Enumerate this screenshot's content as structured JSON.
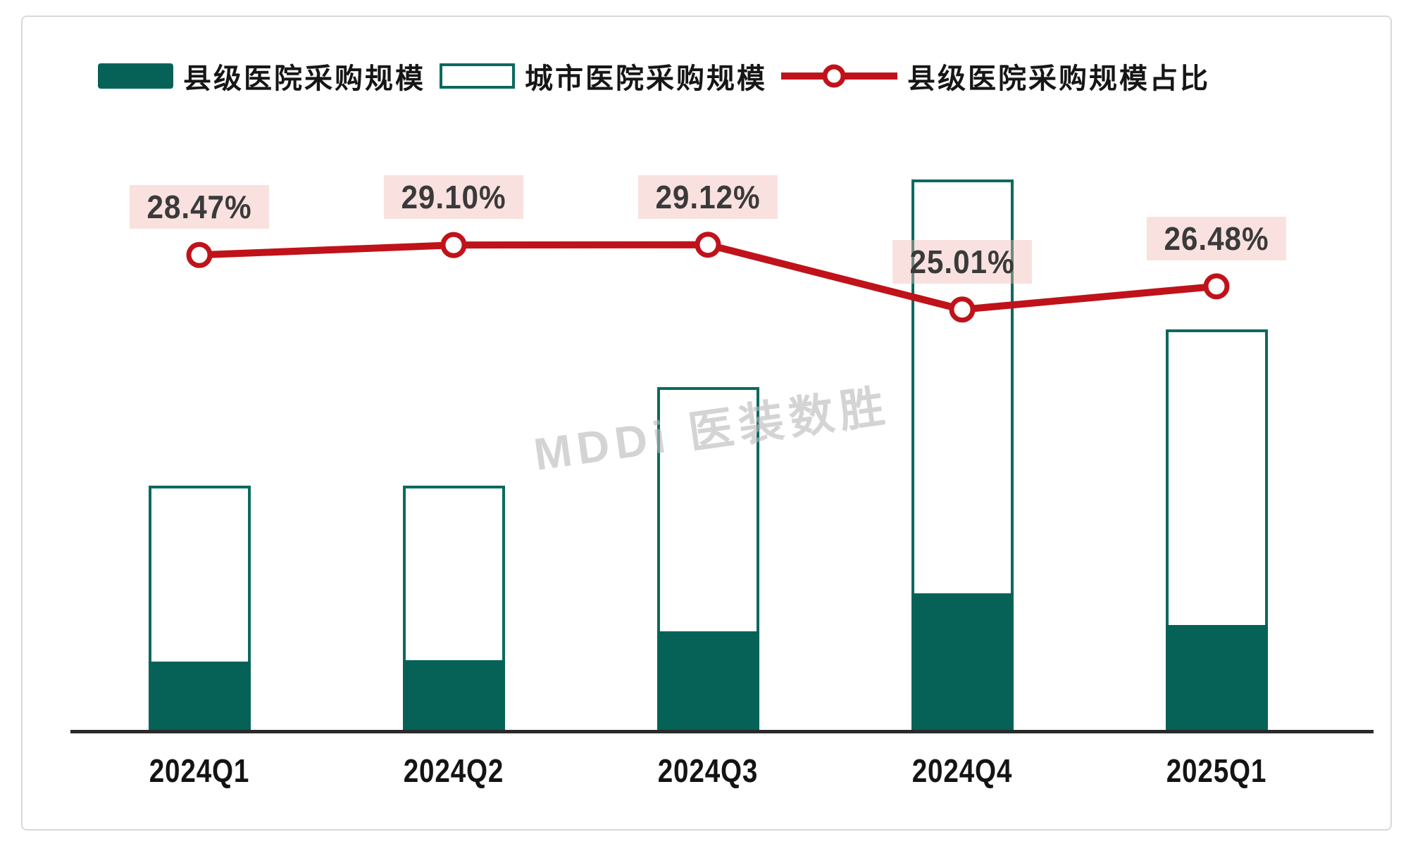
{
  "chart_data": {
    "type": "bar",
    "subtype": "stacked-bars-with-ratio-line",
    "categories": [
      "2024Q1",
      "2024Q2",
      "2024Q3",
      "2024Q4",
      "2025Q1"
    ],
    "series": [
      {
        "name": "县级医院采购规模",
        "type": "bar",
        "stack": "procurement",
        "color": "#066257",
        "values": [
          99,
          101,
          142,
          196,
          151
        ],
        "unit": "relative scale (no value axis shown in chart; heights estimated from pixels)"
      },
      {
        "name": "城市医院采购规模",
        "type": "bar",
        "stack": "procurement",
        "fill": "#ffffff",
        "border_color": "#0c6a5e",
        "values": [
          250,
          248,
          347,
          588,
          420
        ],
        "unit": "relative scale (no value axis shown in chart; heights estimated from pixels)"
      }
    ],
    "line_series": {
      "name": "县级医院采购规模占比",
      "type": "line",
      "color": "#c0121a",
      "marker": "open-circle",
      "values_pct": [
        28.47,
        29.1,
        29.12,
        25.01,
        26.48
      ],
      "labels": [
        "28.47%",
        "29.10%",
        "29.12%",
        "25.01%",
        "26.48%"
      ]
    },
    "title": "",
    "xlabel": "",
    "ylabel": "",
    "value_axis_visible": false,
    "gridlines": false,
    "legend_position": "top-left"
  },
  "legend": {
    "items": [
      {
        "label": "县级医院采购规模",
        "swatch": "filled-teal-square"
      },
      {
        "label": "城市医院采购规模",
        "swatch": "outlined-square"
      },
      {
        "label": "县级医院采购规模占比",
        "swatch": "red-line-with-circle-marker"
      }
    ]
  },
  "watermark": {
    "text": "MDDi 医装数胜"
  },
  "colors": {
    "county_bar_fill": "#066257",
    "bar_border": "#0c6a5e",
    "city_bar_fill": "#ffffff",
    "ratio_line": "#c0121a",
    "ratio_label_bg": "#f9e3e1",
    "ratio_label_text": "#3a3a3a",
    "axis_line": "#2a2a2a",
    "tick_text": "#141414",
    "legend_text": "#161616",
    "watermark_text": "#b9b9b9",
    "frame_border": "#d9d9d9"
  }
}
